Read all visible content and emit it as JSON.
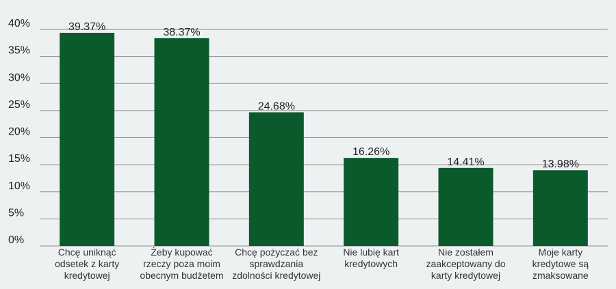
{
  "chart_data": {
    "type": "bar",
    "title": "",
    "xlabel": "",
    "ylabel": "",
    "ylim": [
      0,
      40
    ],
    "yticks": [
      0,
      5,
      10,
      15,
      20,
      25,
      30,
      35,
      40
    ],
    "ytick_labels": [
      "0%",
      "5%",
      "10%",
      "15%",
      "20%",
      "25%",
      "30%",
      "35%",
      "40%"
    ],
    "grid": true,
    "legend": "none",
    "bar_color": "#0b5a2c",
    "categories": [
      [
        "Chcę uniknąć",
        "odsetek z karty",
        "kredytowej"
      ],
      [
        "Żeby kupować",
        "rzeczy poza moim",
        "obecnym budżetem"
      ],
      [
        "Chcę pożyczać bez",
        "sprawdzania",
        "zdolności kredytowej"
      ],
      [
        "Nie lubię kart",
        "kredytowych"
      ],
      [
        "Nie zostałem",
        "zaakceptowany do",
        "karty kredytowej"
      ],
      [
        "Moje karty",
        "kredytowe są",
        "zmaksowane"
      ]
    ],
    "values": [
      39.37,
      38.37,
      24.68,
      16.26,
      14.41,
      13.98
    ],
    "value_labels": [
      "39.37%",
      "38.37%",
      "24.68%",
      "16.26%",
      "14.41%",
      "13.98%"
    ]
  }
}
